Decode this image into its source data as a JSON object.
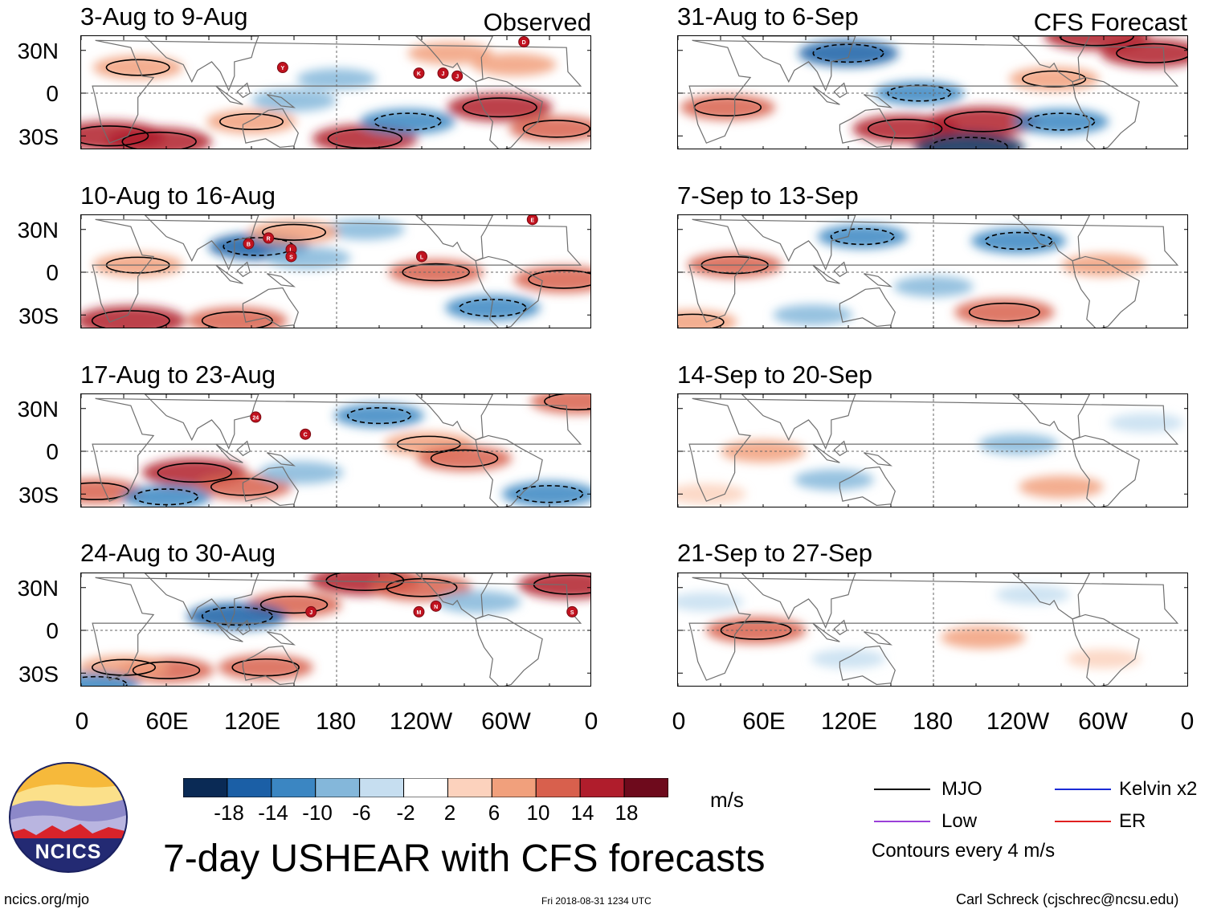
{
  "header": {
    "observed_label": "Observed",
    "forecast_label": "CFS Forecast"
  },
  "panels": {
    "observed": [
      {
        "title": "3-Aug to 9-Aug",
        "storms": [
          {
            "lon": 142,
            "lat": 18,
            "code": "Y"
          },
          {
            "lon": 238,
            "lat": 14,
            "code": "K"
          },
          {
            "lon": 255,
            "lat": 14,
            "code": "J"
          },
          {
            "lon": 265,
            "lat": 12,
            "code": "J"
          },
          {
            "lon": 312,
            "lat": 36,
            "code": "D"
          }
        ]
      },
      {
        "title": "10-Aug to 16-Aug",
        "storms": [
          {
            "lon": 118,
            "lat": 20,
            "code": "B"
          },
          {
            "lon": 132,
            "lat": 24,
            "code": "R"
          },
          {
            "lon": 148,
            "lat": 16,
            "code": "L"
          },
          {
            "lon": 148,
            "lat": 11,
            "code": "S"
          },
          {
            "lon": 240,
            "lat": 11,
            "code": "L"
          },
          {
            "lon": 318,
            "lat": 37,
            "code": "E"
          }
        ]
      },
      {
        "title": "17-Aug to 23-Aug",
        "storms": [
          {
            "lon": 123,
            "lat": 24,
            "code": "24"
          },
          {
            "lon": 158,
            "lat": 12,
            "code": "C"
          }
        ]
      },
      {
        "title": "24-Aug to 30-Aug",
        "storms": [
          {
            "lon": 162,
            "lat": 13,
            "code": "J"
          },
          {
            "lon": 238,
            "lat": 13,
            "code": "M"
          },
          {
            "lon": 250,
            "lat": 17,
            "code": "N"
          },
          {
            "lon": 346,
            "lat": 13,
            "code": "S"
          }
        ]
      }
    ],
    "forecast": [
      {
        "title": "31-Aug to 6-Sep",
        "storms": []
      },
      {
        "title": "7-Sep to 13-Sep",
        "storms": []
      },
      {
        "title": "14-Sep to 20-Sep",
        "storms": []
      },
      {
        "title": "21-Sep to 27-Sep",
        "storms": []
      }
    ]
  },
  "axes": {
    "lat_ticks": [
      "30N",
      "0",
      "30S"
    ],
    "lon_ticks": [
      "0",
      "60E",
      "120E",
      "180",
      "120W",
      "60W",
      "0"
    ]
  },
  "colorbar": {
    "ticks": [
      "-18",
      "-14",
      "-10",
      "-6",
      "-2",
      "2",
      "6",
      "10",
      "14",
      "18"
    ],
    "colors": [
      "#0a2a55",
      "#1b5fa6",
      "#3b86c2",
      "#84b7da",
      "#c6def0",
      "#ffffff",
      "#fcd2bd",
      "#f1a07c",
      "#d8604d",
      "#b01d2c",
      "#6e0a1c"
    ],
    "units": "m/s"
  },
  "legend": {
    "items": [
      {
        "label": "MJO",
        "color": "#000000"
      },
      {
        "label": "Kelvin x2",
        "color": "#1a2bd6"
      },
      {
        "label": "Low",
        "color": "#9a3fd8"
      },
      {
        "label": "ER",
        "color": "#e02020"
      }
    ],
    "note": "Contours every 4 m/s"
  },
  "footer": {
    "logo_text": "NCICS",
    "main_title": "7-day USHEAR with CFS forecasts",
    "url": "ncics.org/mjo",
    "timestamp": "Fri 2018-08-31 1234 UTC",
    "author": "Carl Schreck (cjschrec@ncsu.edu)"
  },
  "chart_data": {
    "type": "heatmap",
    "variable": "7-day USHEAR anomaly",
    "units": "m/s",
    "x_range": [
      0,
      360
    ],
    "y_range": [
      -40,
      40
    ],
    "x_ticks": [
      "0",
      "60E",
      "120E",
      "180",
      "120W",
      "60W",
      "0"
    ],
    "y_ticks": [
      "30N",
      "0",
      "30S"
    ],
    "color_levels": [
      -18,
      -14,
      -10,
      -6,
      -2,
      2,
      6,
      10,
      14,
      18
    ],
    "contour_interval": 4,
    "panels": [
      {
        "title": "3-Aug to 9-Aug",
        "source": "Observed",
        "anomalies": [
          {
            "lon": 20,
            "lat": -30,
            "value": 18
          },
          {
            "lon": 55,
            "lat": -34,
            "value": 16
          },
          {
            "lon": 120,
            "lat": -20,
            "value": 10
          },
          {
            "lon": 200,
            "lat": -32,
            "value": 16
          },
          {
            "lon": 295,
            "lat": -10,
            "value": 16
          },
          {
            "lon": 335,
            "lat": -25,
            "value": 12
          },
          {
            "lon": 40,
            "lat": 18,
            "value": 10
          },
          {
            "lon": 150,
            "lat": -5,
            "value": -8
          },
          {
            "lon": 230,
            "lat": -20,
            "value": -12
          },
          {
            "lon": 180,
            "lat": 10,
            "value": -6
          },
          {
            "lon": 305,
            "lat": 20,
            "value": 8
          },
          {
            "lon": 260,
            "lat": 28,
            "value": 8
          }
        ]
      },
      {
        "title": "10-Aug to 16-Aug",
        "source": "Observed",
        "anomalies": [
          {
            "lon": 35,
            "lat": -34,
            "value": 18
          },
          {
            "lon": 110,
            "lat": -34,
            "value": 14
          },
          {
            "lon": 250,
            "lat": 0,
            "value": 12
          },
          {
            "lon": 340,
            "lat": -5,
            "value": 14
          },
          {
            "lon": 40,
            "lat": 5,
            "value": 10
          },
          {
            "lon": 125,
            "lat": 18,
            "value": -14
          },
          {
            "lon": 160,
            "lat": 10,
            "value": -8
          },
          {
            "lon": 290,
            "lat": -25,
            "value": -12
          },
          {
            "lon": 200,
            "lat": 30,
            "value": -6
          },
          {
            "lon": 150,
            "lat": 28,
            "value": 10
          }
        ]
      },
      {
        "title": "17-Aug to 23-Aug",
        "source": "Observed",
        "anomalies": [
          {
            "lon": 80,
            "lat": -15,
            "value": 16
          },
          {
            "lon": 115,
            "lat": -25,
            "value": 12
          },
          {
            "lon": 10,
            "lat": -28,
            "value": 12
          },
          {
            "lon": 245,
            "lat": 5,
            "value": 10
          },
          {
            "lon": 270,
            "lat": -5,
            "value": 12
          },
          {
            "lon": 350,
            "lat": 35,
            "value": 12
          },
          {
            "lon": 155,
            "lat": -15,
            "value": -8
          },
          {
            "lon": 210,
            "lat": 25,
            "value": -10
          },
          {
            "lon": 330,
            "lat": -30,
            "value": -12
          },
          {
            "lon": 60,
            "lat": -32,
            "value": -10
          }
        ]
      },
      {
        "title": "24-Aug to 30-Aug",
        "source": "Observed",
        "anomalies": [
          {
            "lon": 200,
            "lat": 35,
            "value": 18
          },
          {
            "lon": 240,
            "lat": 30,
            "value": 14
          },
          {
            "lon": 345,
            "lat": 32,
            "value": 16
          },
          {
            "lon": 150,
            "lat": 18,
            "value": 12
          },
          {
            "lon": 60,
            "lat": -28,
            "value": 12
          },
          {
            "lon": 130,
            "lat": -26,
            "value": 12
          },
          {
            "lon": 30,
            "lat": -26,
            "value": 10
          },
          {
            "lon": 110,
            "lat": 10,
            "value": -14
          },
          {
            "lon": 10,
            "lat": -38,
            "value": -10
          },
          {
            "lon": 280,
            "lat": 20,
            "value": -8
          }
        ]
      },
      {
        "title": "31-Aug to 6-Sep",
        "source": "CFS Forecast",
        "anomalies": [
          {
            "lon": 160,
            "lat": -25,
            "value": 16
          },
          {
            "lon": 215,
            "lat": -20,
            "value": 18
          },
          {
            "lon": 335,
            "lat": 28,
            "value": 16
          },
          {
            "lon": 295,
            "lat": 40,
            "value": 16
          },
          {
            "lon": 35,
            "lat": -10,
            "value": 12
          },
          {
            "lon": 265,
            "lat": 10,
            "value": 10
          },
          {
            "lon": 120,
            "lat": 28,
            "value": -14
          },
          {
            "lon": 205,
            "lat": -38,
            "value": -18
          },
          {
            "lon": 170,
            "lat": 0,
            "value": -10
          },
          {
            "lon": 270,
            "lat": -20,
            "value": -12
          }
        ]
      },
      {
        "title": "7-Sep to 13-Sep",
        "source": "CFS Forecast",
        "anomalies": [
          {
            "lon": 40,
            "lat": 5,
            "value": 12
          },
          {
            "lon": 230,
            "lat": -28,
            "value": 14
          },
          {
            "lon": 300,
            "lat": 5,
            "value": 8
          },
          {
            "lon": 10,
            "lat": -35,
            "value": 10
          },
          {
            "lon": 240,
            "lat": 22,
            "value": -12
          },
          {
            "lon": 130,
            "lat": 25,
            "value": -10
          },
          {
            "lon": 180,
            "lat": -10,
            "value": -6
          },
          {
            "lon": 95,
            "lat": -30,
            "value": -6
          }
        ]
      },
      {
        "title": "14-Sep to 20-Sep",
        "source": "CFS Forecast",
        "anomalies": [
          {
            "lon": 60,
            "lat": 0,
            "value": 8
          },
          {
            "lon": 270,
            "lat": -25,
            "value": 8
          },
          {
            "lon": 20,
            "lat": -30,
            "value": 6
          },
          {
            "lon": 110,
            "lat": -20,
            "value": -6
          },
          {
            "lon": 240,
            "lat": 5,
            "value": -6
          },
          {
            "lon": 330,
            "lat": 20,
            "value": -4
          }
        ]
      },
      {
        "title": "21-Sep to 27-Sep",
        "source": "CFS Forecast",
        "anomalies": [
          {
            "lon": 55,
            "lat": 0,
            "value": 14
          },
          {
            "lon": 215,
            "lat": -5,
            "value": 8
          },
          {
            "lon": 300,
            "lat": -20,
            "value": 4
          },
          {
            "lon": 120,
            "lat": -20,
            "value": -4
          },
          {
            "lon": 250,
            "lat": 25,
            "value": -4
          },
          {
            "lon": 20,
            "lat": 20,
            "value": -4
          }
        ]
      }
    ]
  }
}
